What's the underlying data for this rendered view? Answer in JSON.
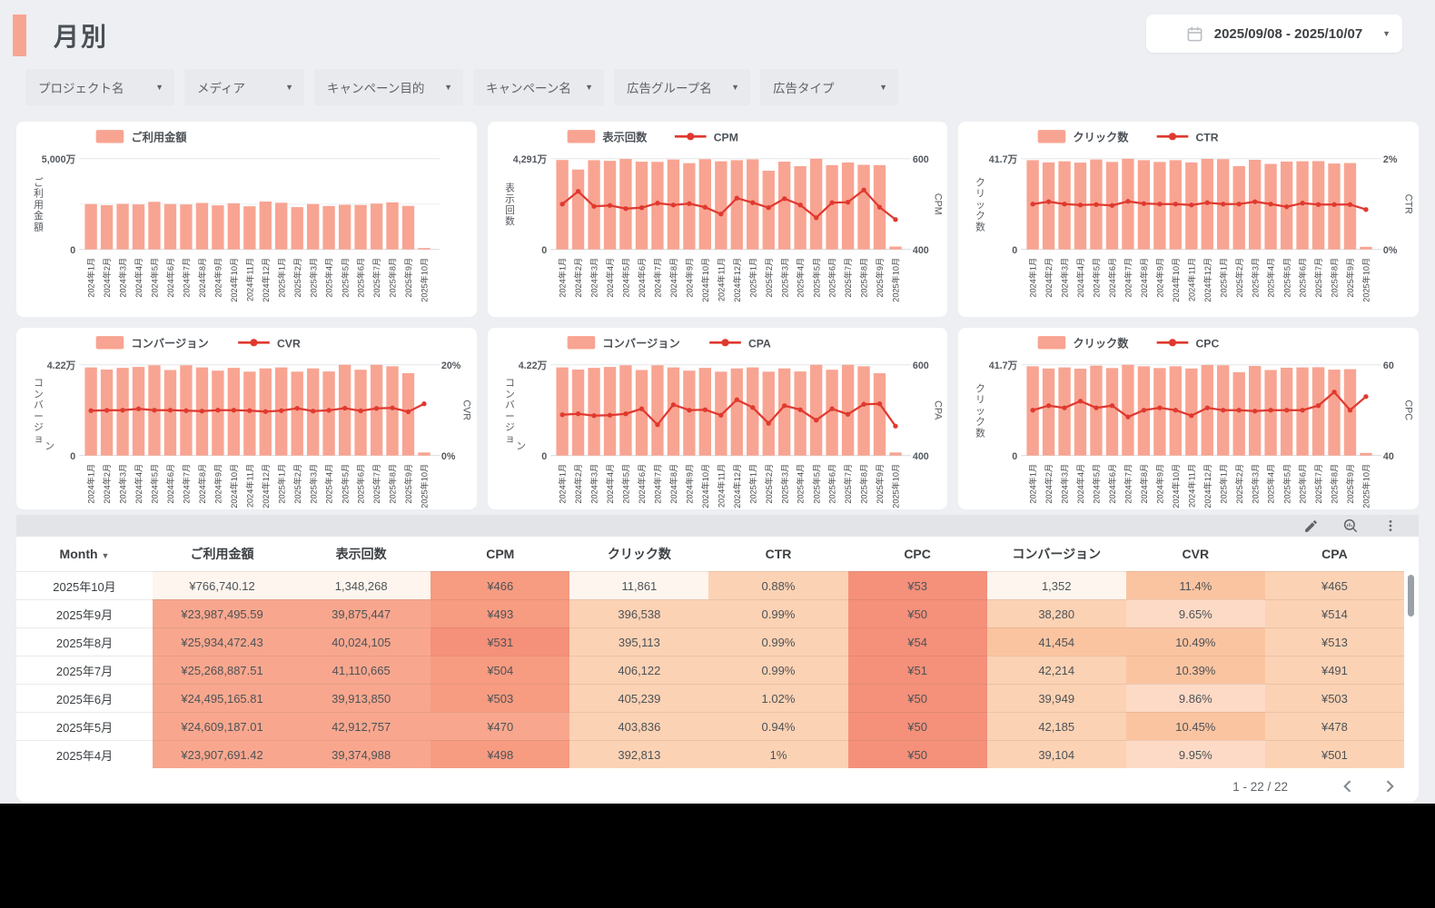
{
  "page": {
    "title": "月別",
    "accent_color": "#F8A492",
    "background": "#EDEFF2"
  },
  "date_range": {
    "label": "2025/09/08 - 2025/10/07",
    "icon": "calendar-icon"
  },
  "filters": [
    {
      "key": "project",
      "label": "プロジェクト名"
    },
    {
      "key": "media",
      "label": "メディア"
    },
    {
      "key": "campaign-objective",
      "label": "キャンペーン目的"
    },
    {
      "key": "campaign-name",
      "label": "キャンペーン名"
    },
    {
      "key": "ad-group",
      "label": "広告グループ名"
    },
    {
      "key": "ad-type",
      "label": "広告タイプ"
    }
  ],
  "months": [
    "2024年1月",
    "2024年2月",
    "2024年3月",
    "2024年4月",
    "2024年5月",
    "2024年6月",
    "2024年7月",
    "2024年8月",
    "2024年9月",
    "2024年10月",
    "2024年11月",
    "2024年12月",
    "2025年1月",
    "2025年2月",
    "2025年3月",
    "2025年4月",
    "2025年5月",
    "2025年6月",
    "2025年7月",
    "2025年8月",
    "2025年9月",
    "2025年10月"
  ],
  "colors": {
    "bar": "#F8A492",
    "line": "#E0392F",
    "grid": "#E3E5E8"
  },
  "charts": [
    {
      "name": "cost-chart",
      "mid_grid": true,
      "legend": [
        {
          "kind": "bar",
          "label": "ご利用金額"
        }
      ],
      "left_axis": {
        "title_lines": [
          "ご利用金額"
        ],
        "max": "5,000万",
        "min": "0"
      },
      "right_axis": null,
      "chart_data": {
        "type": "bar",
        "x_key": "months",
        "left_range": [
          0,
          5000
        ],
        "series": [
          {
            "kind": "bar",
            "name": "ご利用金額",
            "unit": "万円",
            "axis": "left",
            "values": [
              2500,
              2440,
              2510,
              2480,
              2620,
              2500,
              2480,
              2560,
              2430,
              2540,
              2380,
              2640,
              2570,
              2330,
              2500,
              2391,
              2461,
              2450,
              2527,
              2593,
              2399,
              77
            ]
          }
        ]
      }
    },
    {
      "name": "impressions-cpm-chart",
      "mid_grid": false,
      "legend": [
        {
          "kind": "bar",
          "label": "表示回数"
        },
        {
          "kind": "line",
          "label": "CPM"
        }
      ],
      "left_axis": {
        "title_lines": [
          "表示回数"
        ],
        "max": "4,291万",
        "min": "0"
      },
      "right_axis": {
        "title": "CPM",
        "max": "600",
        "min": "400"
      },
      "chart_data": {
        "type": "bar+line",
        "x_key": "months",
        "left_range": [
          0,
          4291
        ],
        "right_range": [
          400,
          600
        ],
        "series": [
          {
            "kind": "bar",
            "name": "表示回数",
            "unit": "万",
            "axis": "left",
            "values": [
              4230,
              3780,
              4220,
              4190,
              4280,
              4150,
              4140,
              4250,
              4080,
              4270,
              4170,
              4220,
              4260,
              3720,
              4150,
              3937,
              4291,
              3991,
              4111,
              4002,
              3988,
              135
            ]
          },
          {
            "kind": "line",
            "name": "CPM",
            "unit": "円",
            "axis": "right",
            "values": [
              500,
              528,
              495,
              497,
              490,
              492,
              502,
              498,
              501,
              493,
              478,
              513,
              503,
              492,
              512,
              498,
              470,
              503,
              504,
              531,
              493,
              466
            ]
          }
        ]
      }
    },
    {
      "name": "clicks-ctr-chart",
      "mid_grid": false,
      "legend": [
        {
          "kind": "bar",
          "label": "クリック数"
        },
        {
          "kind": "line",
          "label": "CTR"
        }
      ],
      "left_axis": {
        "title_lines": [
          "クリック数"
        ],
        "max": "41.7万",
        "min": "0"
      },
      "right_axis": {
        "title": "CTR",
        "max": "2%",
        "min": "0%"
      },
      "chart_data": {
        "type": "bar+line",
        "x_key": "months",
        "left_range": [
          0,
          41.7
        ],
        "right_range": [
          0,
          2
        ],
        "series": [
          {
            "kind": "bar",
            "name": "クリック数",
            "unit": "万",
            "axis": "left",
            "values": [
              41.0,
              40.0,
              40.5,
              39.9,
              41.3,
              40.2,
              41.7,
              41.0,
              40.2,
              41.0,
              40.0,
              41.6,
              41.5,
              38.3,
              41.2,
              39.3,
              40.4,
              40.5,
              40.6,
              39.5,
              39.7,
              1.2
            ]
          },
          {
            "kind": "line",
            "name": "CTR",
            "unit": "%",
            "axis": "right",
            "values": [
              1.0,
              1.05,
              1.0,
              0.98,
              0.99,
              0.97,
              1.06,
              1.01,
              1.0,
              1.0,
              0.98,
              1.03,
              1.0,
              1.0,
              1.05,
              1.0,
              0.94,
              1.02,
              0.99,
              0.99,
              0.99,
              0.88
            ]
          }
        ]
      }
    },
    {
      "name": "conversions-cvr-chart",
      "mid_grid": false,
      "legend": [
        {
          "kind": "bar",
          "label": "コンバージョン"
        },
        {
          "kind": "line",
          "label": "CVR"
        }
      ],
      "left_axis": {
        "title_lines": [
          "コンバージョ",
          "ン"
        ],
        "max": "4.22万",
        "min": "0"
      },
      "right_axis": {
        "title": "CVR",
        "max": "20%",
        "min": "0%"
      },
      "chart_data": {
        "type": "bar+line",
        "x_key": "months",
        "left_range": [
          0,
          4.22
        ],
        "right_range": [
          0,
          20
        ],
        "series": [
          {
            "kind": "bar",
            "name": "コンバージョン",
            "unit": "万",
            "axis": "left",
            "values": [
              4.1,
              4.0,
              4.08,
              4.12,
              4.2,
              3.98,
              4.2,
              4.1,
              3.95,
              4.08,
              3.9,
              4.05,
              4.1,
              3.9,
              4.05,
              3.91,
              4.22,
              3.99,
              4.22,
              4.15,
              3.83,
              0.14
            ]
          },
          {
            "kind": "line",
            "name": "CVR",
            "unit": "%",
            "axis": "right",
            "values": [
              9.9,
              9.95,
              10.0,
              10.3,
              10.0,
              10.0,
              9.9,
              9.8,
              10.0,
              10.0,
              9.9,
              9.7,
              9.9,
              10.4,
              9.8,
              9.95,
              10.45,
              9.86,
              10.39,
              10.49,
              9.65,
              11.4
            ]
          }
        ]
      }
    },
    {
      "name": "conversions-cpa-chart",
      "mid_grid": false,
      "legend": [
        {
          "kind": "bar",
          "label": "コンバージョン"
        },
        {
          "kind": "line",
          "label": "CPA"
        }
      ],
      "left_axis": {
        "title_lines": [
          "コンバージョ",
          "ン"
        ],
        "max": "4.22万",
        "min": "0"
      },
      "right_axis": {
        "title": "CPA",
        "max": "600",
        "min": "400"
      },
      "chart_data": {
        "type": "bar+line",
        "x_key": "months",
        "left_range": [
          0,
          4.22
        ],
        "right_range": [
          400,
          600
        ],
        "series": [
          {
            "kind": "bar",
            "name": "コンバージョン",
            "unit": "万",
            "axis": "left",
            "values": [
              4.1,
              4.0,
              4.08,
              4.12,
              4.2,
              3.98,
              4.2,
              4.1,
              3.95,
              4.08,
              3.9,
              4.05,
              4.1,
              3.9,
              4.05,
              3.91,
              4.22,
              3.99,
              4.22,
              4.15,
              3.83,
              0.14
            ]
          },
          {
            "kind": "line",
            "name": "CPA",
            "unit": "円",
            "axis": "right",
            "values": [
              490,
              492,
              488,
              489,
              492,
              503,
              468,
              512,
              500,
              501,
              489,
              523,
              506,
              471,
              510,
              501,
              478,
              503,
              491,
              513,
              514,
              465
            ]
          }
        ]
      }
    },
    {
      "name": "clicks-cpc-chart",
      "mid_grid": false,
      "legend": [
        {
          "kind": "bar",
          "label": "クリック数"
        },
        {
          "kind": "line",
          "label": "CPC"
        }
      ],
      "left_axis": {
        "title_lines": [
          "クリック数"
        ],
        "max": "41.7万",
        "min": "0"
      },
      "right_axis": {
        "title": "CPC",
        "max": "60",
        "min": "40"
      },
      "chart_data": {
        "type": "bar+line",
        "x_key": "months",
        "left_range": [
          0,
          41.7
        ],
        "right_range": [
          40,
          60
        ],
        "series": [
          {
            "kind": "bar",
            "name": "クリック数",
            "unit": "万",
            "axis": "left",
            "values": [
              41.0,
              40.0,
              40.5,
              39.9,
              41.3,
              40.2,
              41.7,
              41.0,
              40.2,
              41.0,
              40.0,
              41.6,
              41.5,
              38.3,
              41.2,
              39.3,
              40.4,
              40.5,
              40.6,
              39.5,
              39.7,
              1.2
            ]
          },
          {
            "kind": "line",
            "name": "CPC",
            "unit": "円",
            "axis": "right",
            "values": [
              50,
              51,
              50.5,
              52,
              50.5,
              51,
              48.5,
              50,
              50.5,
              50,
              48.8,
              50.5,
              50,
              50,
              49.8,
              50,
              50,
              50,
              51,
              54,
              50,
              53
            ]
          }
        ]
      }
    }
  ],
  "toolbar": {
    "icons": [
      "edit-icon",
      "explore-icon",
      "more-options-icon"
    ]
  },
  "table": {
    "palette": {
      "m": "#FFFFFF",
      "w": "#FDF5EE",
      "s1": "#F8A78E",
      "s2": "#F5907A",
      "s3": "#F79B81",
      "p1": "#FCD2B4",
      "p2": "#FBC4A1",
      "p3": "#FDDAC5"
    },
    "columns": [
      {
        "key": "month",
        "label": "Month",
        "sort": "desc"
      },
      {
        "key": "cost",
        "label": "ご利用金額"
      },
      {
        "key": "impressions",
        "label": "表示回数"
      },
      {
        "key": "cpm",
        "label": "CPM"
      },
      {
        "key": "clicks",
        "label": "クリック数"
      },
      {
        "key": "ctr",
        "label": "CTR"
      },
      {
        "key": "cpc",
        "label": "CPC"
      },
      {
        "key": "conversions",
        "label": "コンバージョン"
      },
      {
        "key": "cvr",
        "label": "CVR"
      },
      {
        "key": "cpa",
        "label": "CPA"
      }
    ],
    "rows": [
      {
        "cells": [
          {
            "v": "2025年10月",
            "bg": "m"
          },
          {
            "v": "¥766,740.12",
            "bg": "w"
          },
          {
            "v": "1,348,268",
            "bg": "w"
          },
          {
            "v": "¥466",
            "bg": "s3"
          },
          {
            "v": "11,861",
            "bg": "w"
          },
          {
            "v": "0.88%",
            "bg": "p1"
          },
          {
            "v": "¥53",
            "bg": "s2"
          },
          {
            "v": "1,352",
            "bg": "w"
          },
          {
            "v": "11.4%",
            "bg": "p2"
          },
          {
            "v": "¥465",
            "bg": "p1"
          }
        ]
      },
      {
        "cells": [
          {
            "v": "2025年9月",
            "bg": "m"
          },
          {
            "v": "¥23,987,495.59",
            "bg": "s1"
          },
          {
            "v": "39,875,447",
            "bg": "s1"
          },
          {
            "v": "¥493",
            "bg": "s3"
          },
          {
            "v": "396,538",
            "bg": "p1"
          },
          {
            "v": "0.99%",
            "bg": "p1"
          },
          {
            "v": "¥50",
            "bg": "s2"
          },
          {
            "v": "38,280",
            "bg": "p1"
          },
          {
            "v": "9.65%",
            "bg": "p3"
          },
          {
            "v": "¥514",
            "bg": "p1"
          }
        ]
      },
      {
        "cells": [
          {
            "v": "2025年8月",
            "bg": "m"
          },
          {
            "v": "¥25,934,472.43",
            "bg": "s1"
          },
          {
            "v": "40,024,105",
            "bg": "s1"
          },
          {
            "v": "¥531",
            "bg": "s2"
          },
          {
            "v": "395,113",
            "bg": "p1"
          },
          {
            "v": "0.99%",
            "bg": "p1"
          },
          {
            "v": "¥54",
            "bg": "s2"
          },
          {
            "v": "41,454",
            "bg": "p2"
          },
          {
            "v": "10.49%",
            "bg": "p2"
          },
          {
            "v": "¥513",
            "bg": "p1"
          }
        ]
      },
      {
        "cells": [
          {
            "v": "2025年7月",
            "bg": "m"
          },
          {
            "v": "¥25,268,887.51",
            "bg": "s1"
          },
          {
            "v": "41,110,665",
            "bg": "s1"
          },
          {
            "v": "¥504",
            "bg": "s3"
          },
          {
            "v": "406,122",
            "bg": "p1"
          },
          {
            "v": "0.99%",
            "bg": "p1"
          },
          {
            "v": "¥51",
            "bg": "s2"
          },
          {
            "v": "42,214",
            "bg": "p1"
          },
          {
            "v": "10.39%",
            "bg": "p2"
          },
          {
            "v": "¥491",
            "bg": "p1"
          }
        ]
      },
      {
        "cells": [
          {
            "v": "2025年6月",
            "bg": "m"
          },
          {
            "v": "¥24,495,165.81",
            "bg": "s1"
          },
          {
            "v": "39,913,850",
            "bg": "s1"
          },
          {
            "v": "¥503",
            "bg": "s3"
          },
          {
            "v": "405,239",
            "bg": "p1"
          },
          {
            "v": "1.02%",
            "bg": "p1"
          },
          {
            "v": "¥50",
            "bg": "s2"
          },
          {
            "v": "39,949",
            "bg": "p1"
          },
          {
            "v": "9.86%",
            "bg": "p3"
          },
          {
            "v": "¥503",
            "bg": "p1"
          }
        ]
      },
      {
        "cells": [
          {
            "v": "2025年5月",
            "bg": "m"
          },
          {
            "v": "¥24,609,187.01",
            "bg": "s1"
          },
          {
            "v": "42,912,757",
            "bg": "s1"
          },
          {
            "v": "¥470",
            "bg": "s1"
          },
          {
            "v": "403,836",
            "bg": "p1"
          },
          {
            "v": "0.94%",
            "bg": "p1"
          },
          {
            "v": "¥50",
            "bg": "s2"
          },
          {
            "v": "42,185",
            "bg": "p1"
          },
          {
            "v": "10.45%",
            "bg": "p2"
          },
          {
            "v": "¥478",
            "bg": "p1"
          }
        ]
      },
      {
        "cells": [
          {
            "v": "2025年4月",
            "bg": "m"
          },
          {
            "v": "¥23,907,691.42",
            "bg": "s1"
          },
          {
            "v": "39,374,988",
            "bg": "s1"
          },
          {
            "v": "¥498",
            "bg": "s3"
          },
          {
            "v": "392,813",
            "bg": "p1"
          },
          {
            "v": "1%",
            "bg": "p1"
          },
          {
            "v": "¥50",
            "bg": "s2"
          },
          {
            "v": "39,104",
            "bg": "p1"
          },
          {
            "v": "9.95%",
            "bg": "p3"
          },
          {
            "v": "¥501",
            "bg": "p1"
          }
        ]
      }
    ],
    "pagination": {
      "label": "1 - 22 / 22"
    }
  }
}
